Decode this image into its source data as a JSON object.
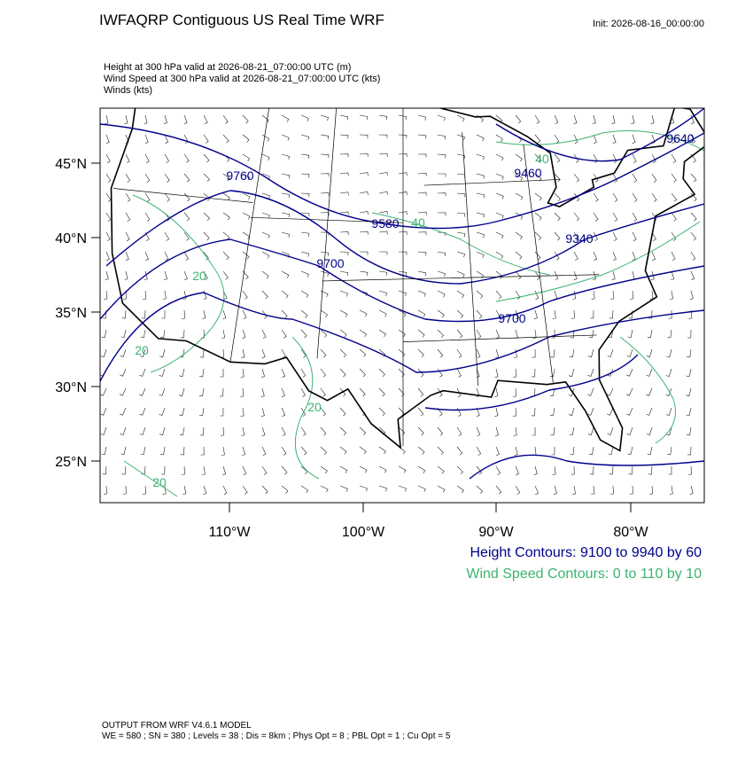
{
  "header": {
    "title": "IWFAQRP Contiguous US Real Time WRF",
    "init": "Init: 2026-08-16_00:00:00",
    "fields": [
      "Height at 300 hPa valid at 2026-08-21_07:00:00 UTC   (m)",
      "Wind Speed at 300 hPa valid at 2026-08-21_07:00:00 UTC   (kts)",
      "Winds   (kts)"
    ]
  },
  "map": {
    "lat_labels": [
      "45°N",
      "40°N",
      "35°N",
      "30°N",
      "25°N"
    ],
    "lon_labels": [
      "110°W",
      "100°W",
      "90°W",
      "80°W"
    ],
    "height_labels": [
      "9760",
      "9580",
      "9700",
      "9460",
      "9340",
      "9700",
      "9640"
    ],
    "speed_labels": [
      "40",
      "40",
      "20",
      "20",
      "20",
      "20"
    ]
  },
  "legend": {
    "height": "Height Contours: 9100 to 9940 by 60",
    "speed": "Wind Speed Contours: 0 to 110 by 10"
  },
  "footer": [
    "OUTPUT FROM WRF V4.6.1 MODEL",
    "WE = 580 ; SN = 380 ; Levels = 38 ; Dis = 8km ; Phys Opt = 8 ; PBL Opt = 1 ; Cu Opt = 5"
  ]
}
